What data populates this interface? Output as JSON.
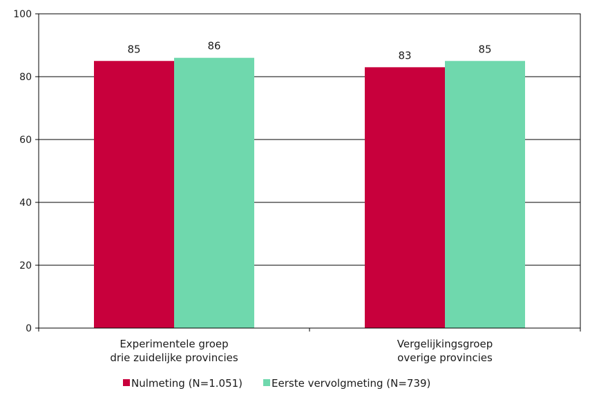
{
  "chart_data": {
    "type": "bar",
    "title": "",
    "xlabel": "",
    "ylabel": "",
    "ylim": [
      0,
      100
    ],
    "yticks": [
      0,
      20,
      40,
      60,
      80,
      100
    ],
    "grid": true,
    "legend_position": "bottom",
    "categories": [
      [
        "Experimentele groep",
        "drie zuidelijke provincies"
      ],
      [
        "Vergelijkingsgroep",
        "overige provincies"
      ]
    ],
    "series": [
      {
        "name": "Nulmeting (N=1.051)",
        "color": "#c8003c",
        "values": [
          85,
          83
        ]
      },
      {
        "name": "Eerste vervolgmeting (N=739)",
        "color": "#6fd8ad",
        "values": [
          86,
          85
        ]
      }
    ]
  }
}
